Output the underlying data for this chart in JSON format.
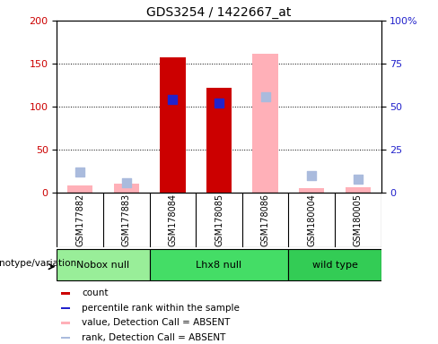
{
  "title": "GDS3254 / 1422667_at",
  "samples": [
    "GSM177882",
    "GSM177883",
    "GSM178084",
    "GSM178085",
    "GSM178086",
    "GSM180004",
    "GSM180005"
  ],
  "count_values": [
    null,
    null,
    157,
    122,
    null,
    null,
    null
  ],
  "rank_values_left": [
    null,
    null,
    108,
    104,
    null,
    null,
    null
  ],
  "absent_value_values": [
    8,
    10,
    null,
    null,
    162,
    5,
    6
  ],
  "absent_rank_left": [
    24,
    12,
    null,
    null,
    112,
    20,
    16
  ],
  "ylim_left": [
    0,
    200
  ],
  "ylim_right": [
    0,
    100
  ],
  "yticks_left": [
    0,
    50,
    100,
    150,
    200
  ],
  "yticks_right": [
    0,
    25,
    50,
    75,
    100
  ],
  "ytick_labels_left": [
    "0",
    "50",
    "100",
    "150",
    "200"
  ],
  "ytick_labels_right": [
    "0",
    "25",
    "50",
    "75",
    "100%"
  ],
  "count_color": "#CC0000",
  "rank_color": "#2222CC",
  "absent_value_color": "#FFB0B8",
  "absent_rank_color": "#AABBDD",
  "bar_width": 0.55,
  "marker_size": 55,
  "absent_marker_size": 55,
  "legend_items": [
    {
      "label": "count",
      "color": "#CC0000"
    },
    {
      "label": "percentile rank within the sample",
      "color": "#2222CC"
    },
    {
      "label": "value, Detection Call = ABSENT",
      "color": "#FFB0B8"
    },
    {
      "label": "rank, Detection Call = ABSENT",
      "color": "#AABBDD"
    }
  ],
  "group_specs": [
    {
      "label": "Nobox null",
      "start": 0,
      "end": 2,
      "color": "#99EE99"
    },
    {
      "label": "Lhx8 null",
      "start": 2,
      "end": 5,
      "color": "#44DD66"
    },
    {
      "label": "wild type",
      "start": 5,
      "end": 7,
      "color": "#33CC55"
    }
  ],
  "genotype_label": "genotype/variation",
  "title_fontsize": 10,
  "axis_label_fontsize": 8,
  "tick_fontsize": 8,
  "legend_fontsize": 8,
  "sample_fontsize": 7,
  "bg_color": "#FFFFFF",
  "plot_bg": "#FFFFFF",
  "sample_area_color": "#D0D0D0",
  "grid_linestyle": "dotted",
  "grid_color": "black"
}
